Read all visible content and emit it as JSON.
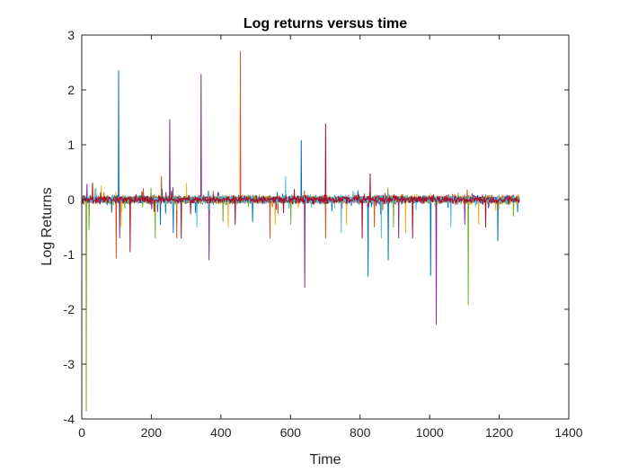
{
  "chart_data": {
    "type": "line",
    "title": "Log returns versus time",
    "xlabel": "Time",
    "ylabel": "Log Returns",
    "xlim": [
      0,
      1400
    ],
    "ylim": [
      -4,
      3
    ],
    "xticks": [
      0,
      200,
      400,
      600,
      800,
      1000,
      1200,
      1400
    ],
    "yticks": [
      -4,
      -3,
      -2,
      -1,
      0,
      1,
      2,
      3
    ],
    "grid": false,
    "legend": "none",
    "n_points": 1258,
    "noise_amplitude": 0.06,
    "colors": [
      "#0072BD",
      "#D95319",
      "#EDB120",
      "#7E2F8E",
      "#77AC30",
      "#4DBEEE",
      "#A2142F"
    ],
    "series": [
      {
        "color": "#0072BD",
        "spikes": [
          {
            "x": 105,
            "y": 2.35
          },
          {
            "x": 225,
            "y": -0.45
          },
          {
            "x": 262,
            "y": -0.6
          },
          {
            "x": 490,
            "y": -0.4
          },
          {
            "x": 630,
            "y": 1.08
          },
          {
            "x": 822,
            "y": -1.4
          },
          {
            "x": 880,
            "y": -1.1
          },
          {
            "x": 1002,
            "y": -1.38
          },
          {
            "x": 1195,
            "y": -0.75
          }
        ]
      },
      {
        "color": "#D95319",
        "spikes": [
          {
            "x": 98,
            "y": -1.07
          },
          {
            "x": 228,
            "y": 0.42
          },
          {
            "x": 272,
            "y": -0.7
          },
          {
            "x": 455,
            "y": 2.7
          },
          {
            "x": 540,
            "y": -0.7
          },
          {
            "x": 700,
            "y": -0.7
          },
          {
            "x": 840,
            "y": -0.5
          }
        ]
      },
      {
        "color": "#EDB120",
        "spikes": [
          {
            "x": 55,
            "y": 0.25
          },
          {
            "x": 112,
            "y": -0.5
          },
          {
            "x": 300,
            "y": 0.3
          },
          {
            "x": 420,
            "y": -0.5
          },
          {
            "x": 555,
            "y": -0.45
          },
          {
            "x": 760,
            "y": -0.45
          },
          {
            "x": 930,
            "y": -0.6
          },
          {
            "x": 1140,
            "y": -0.45
          }
        ]
      },
      {
        "color": "#7E2F8E",
        "spikes": [
          {
            "x": 14,
            "y": 0.28
          },
          {
            "x": 108,
            "y": -0.7
          },
          {
            "x": 252,
            "y": 1.46
          },
          {
            "x": 342,
            "y": 2.28
          },
          {
            "x": 365,
            "y": -1.1
          },
          {
            "x": 640,
            "y": -1.6
          },
          {
            "x": 910,
            "y": -0.7
          },
          {
            "x": 1018,
            "y": -2.27
          },
          {
            "x": 1100,
            "y": -0.45
          }
        ]
      },
      {
        "color": "#77AC30",
        "spikes": [
          {
            "x": 12,
            "y": -3.85
          },
          {
            "x": 20,
            "y": -0.55
          },
          {
            "x": 210,
            "y": -0.7
          },
          {
            "x": 405,
            "y": -0.4
          },
          {
            "x": 600,
            "y": -0.45
          },
          {
            "x": 895,
            "y": -0.5
          },
          {
            "x": 1110,
            "y": -1.92
          },
          {
            "x": 1240,
            "y": -0.3
          }
        ]
      },
      {
        "color": "#4DBEEE",
        "spikes": [
          {
            "x": 40,
            "y": 0.2
          },
          {
            "x": 330,
            "y": -0.5
          },
          {
            "x": 585,
            "y": 0.42
          },
          {
            "x": 745,
            "y": -0.6
          },
          {
            "x": 860,
            "y": -0.7
          },
          {
            "x": 1060,
            "y": -0.5
          }
        ]
      },
      {
        "color": "#A2142F",
        "spikes": [
          {
            "x": 30,
            "y": 0.3
          },
          {
            "x": 138,
            "y": -0.95
          },
          {
            "x": 285,
            "y": -0.7
          },
          {
            "x": 440,
            "y": -0.45
          },
          {
            "x": 700,
            "y": 1.38
          },
          {
            "x": 805,
            "y": -0.7
          },
          {
            "x": 828,
            "y": 0.47
          },
          {
            "x": 950,
            "y": -0.7
          },
          {
            "x": 1160,
            "y": -0.5
          }
        ]
      }
    ]
  }
}
